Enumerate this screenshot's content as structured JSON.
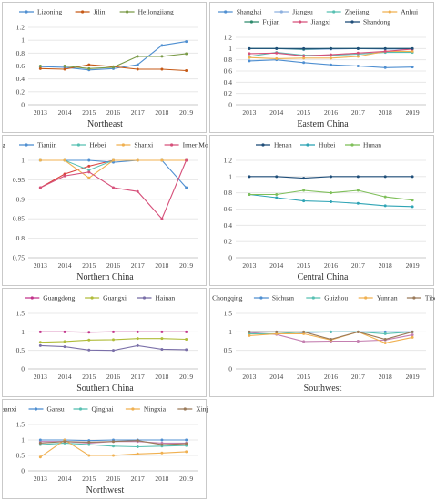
{
  "chart_data": [
    {
      "title": "Northeast",
      "type": "line",
      "x": [
        "2013",
        "2014",
        "2015",
        "2016",
        "2017",
        "2018",
        "2019"
      ],
      "ylim": [
        0,
        1.2
      ],
      "yticks": [
        "0",
        "0.2",
        "0.4",
        "0.6",
        "0.8",
        "1",
        "1.2"
      ],
      "series": [
        {
          "name": "Liaoning",
          "color": "#4f8fd1",
          "values": [
            0.59,
            0.58,
            0.54,
            0.56,
            0.62,
            0.92,
            0.98
          ]
        },
        {
          "name": "Jilin",
          "color": "#c65a17",
          "values": [
            0.56,
            0.55,
            0.62,
            0.59,
            0.55,
            0.55,
            0.53
          ]
        },
        {
          "name": "Heilongjiang",
          "color": "#7a9a47",
          "values": [
            0.6,
            0.6,
            0.56,
            0.58,
            0.75,
            0.75,
            0.79
          ]
        }
      ]
    },
    {
      "title": "Eastern China",
      "type": "line",
      "x": [
        "2013",
        "2014",
        "2015",
        "2016",
        "2017",
        "2018",
        "2019"
      ],
      "ylim": [
        0,
        1.2
      ],
      "yticks": [
        "0",
        "0.2",
        "0.4",
        "0.6",
        "0.8",
        "1",
        "1.2"
      ],
      "series": [
        {
          "name": "Shanghai",
          "color": "#4f8fd1",
          "values": [
            0.78,
            0.8,
            0.75,
            0.71,
            0.69,
            0.66,
            0.67
          ]
        },
        {
          "name": "Jiangsu",
          "color": "#8db0df",
          "values": [
            1.0,
            1.0,
            0.98,
            0.99,
            1.0,
            0.99,
            0.99
          ]
        },
        {
          "name": "Zhejiang",
          "color": "#58c0b2",
          "values": [
            0.86,
            0.93,
            0.88,
            0.88,
            0.9,
            0.93,
            0.93
          ]
        },
        {
          "name": "Anhui",
          "color": "#f0b050",
          "values": [
            0.84,
            0.82,
            0.83,
            0.83,
            0.86,
            0.95,
            0.95
          ]
        },
        {
          "name": "Fujian",
          "color": "#2d8a6c",
          "values": [
            1.0,
            1.0,
            0.99,
            1.0,
            1.0,
            1.0,
            1.0
          ]
        },
        {
          "name": "Jiangxi",
          "color": "#d6507a",
          "values": [
            0.91,
            0.92,
            0.87,
            0.89,
            0.92,
            0.95,
            0.99
          ]
        },
        {
          "name": "Shandong",
          "color": "#1f4e79",
          "values": [
            1.0,
            1.0,
            1.0,
            1.0,
            1.0,
            1.0,
            1.0
          ]
        }
      ]
    },
    {
      "title": "Northern China",
      "type": "line",
      "x": [
        "2013",
        "2014",
        "2015",
        "2016",
        "2017",
        "2018",
        "2019"
      ],
      "ylim": [
        0.75,
        1
      ],
      "yticks": [
        "0.75",
        "0.8",
        "0.85",
        "0.9",
        "0.95",
        "1"
      ],
      "series": [
        {
          "name": "Beijing",
          "color": "#d9413c",
          "values": [
            0.93,
            0.965,
            0.985,
            1.0,
            1.0,
            1.0,
            1.0
          ]
        },
        {
          "name": "Tianjin",
          "color": "#4f8fd1",
          "values": [
            1.0,
            1.0,
            1.0,
            0.995,
            1.0,
            1.0,
            0.93
          ]
        },
        {
          "name": "Hebei",
          "color": "#58c0b2",
          "values": [
            1.0,
            1.0,
            0.975,
            1.0,
            1.0,
            1.0,
            1.0
          ]
        },
        {
          "name": "Shanxi",
          "color": "#f0b050",
          "values": [
            1.0,
            1.0,
            0.955,
            1.0,
            1.0,
            1.0,
            1.0
          ]
        },
        {
          "name": "Inner Mongolia",
          "color": "#d6507a",
          "values": [
            0.93,
            0.96,
            0.97,
            0.93,
            0.92,
            0.85,
            1.0
          ]
        }
      ]
    },
    {
      "title": "Central China",
      "type": "line",
      "x": [
        "2013",
        "2014",
        "2015",
        "2016",
        "2017",
        "2018",
        "2019"
      ],
      "ylim": [
        0,
        1.2
      ],
      "yticks": [
        "0",
        "0.2",
        "0.4",
        "0.6",
        "0.8",
        "1",
        "1.2"
      ],
      "series": [
        {
          "name": "Henan",
          "color": "#1f4e79",
          "values": [
            1.0,
            1.0,
            0.98,
            1.0,
            1.0,
            1.0,
            1.0
          ]
        },
        {
          "name": "Hubei",
          "color": "#2fa4b5",
          "values": [
            0.78,
            0.74,
            0.7,
            0.69,
            0.67,
            0.64,
            0.63
          ]
        },
        {
          "name": "Hunan",
          "color": "#7fbf5a",
          "values": [
            0.78,
            0.78,
            0.83,
            0.8,
            0.83,
            0.75,
            0.71
          ]
        }
      ]
    },
    {
      "title": "Southern China",
      "type": "line",
      "x": [
        "2013",
        "2014",
        "2015",
        "2016",
        "2017",
        "2018",
        "2019"
      ],
      "ylim": [
        0,
        1.5
      ],
      "yticks": [
        "0",
        "0.5",
        "1",
        "1.5"
      ],
      "series": [
        {
          "name": "Guangdong",
          "color": "#c2338a",
          "values": [
            1.0,
            1.0,
            0.99,
            1.0,
            1.0,
            1.0,
            1.0
          ]
        },
        {
          "name": "Guangxi",
          "color": "#b0bc3a",
          "values": [
            0.72,
            0.74,
            0.78,
            0.79,
            0.82,
            0.82,
            0.8
          ]
        },
        {
          "name": "Hainan",
          "color": "#7a6fa8",
          "values": [
            0.63,
            0.6,
            0.51,
            0.5,
            0.63,
            0.53,
            0.52
          ]
        }
      ]
    },
    {
      "title": "Southwest",
      "type": "line",
      "x": [
        "2013",
        "2014",
        "2015",
        "2016",
        "2017",
        "2018",
        "2019"
      ],
      "ylim": [
        0,
        1.5
      ],
      "yticks": [
        "0",
        "0.5",
        "1",
        "1.5"
      ],
      "series": [
        {
          "name": "Chongqing",
          "color": "#c47fb0",
          "values": [
            0.98,
            0.93,
            0.74,
            0.75,
            0.75,
            0.78,
            0.92
          ]
        },
        {
          "name": "Sichuan",
          "color": "#4f8fd1",
          "values": [
            1.0,
            1.0,
            0.98,
            1.0,
            1.0,
            1.0,
            1.0
          ]
        },
        {
          "name": "Guizhou",
          "color": "#58c0b2",
          "values": [
            0.95,
            0.95,
            1.0,
            1.0,
            1.0,
            0.95,
            1.0
          ]
        },
        {
          "name": "Yunnan",
          "color": "#f0b050",
          "values": [
            0.9,
            0.95,
            0.95,
            0.78,
            1.0,
            0.7,
            0.85
          ]
        },
        {
          "name": "Tibet",
          "color": "#9a7a5a",
          "values": [
            1.0,
            1.0,
            1.0,
            0.8,
            1.0,
            0.8,
            1.0
          ]
        }
      ]
    },
    {
      "title": "Northwest",
      "type": "line",
      "x": [
        "2013",
        "2014",
        "2015",
        "2016",
        "2017",
        "2018",
        "2019"
      ],
      "ylim": [
        0,
        1.5
      ],
      "yticks": [
        "0",
        "0.5",
        "1",
        "1.5"
      ],
      "series": [
        {
          "name": "Shaanxi",
          "color": "#c47fb0",
          "values": [
            0.95,
            0.95,
            0.9,
            0.95,
            0.95,
            0.9,
            0.9
          ]
        },
        {
          "name": "Gansu",
          "color": "#4f8fd1",
          "values": [
            1.0,
            1.0,
            0.98,
            1.0,
            1.0,
            1.0,
            1.0
          ]
        },
        {
          "name": "Qinghai",
          "color": "#58c0b2",
          "values": [
            0.85,
            0.9,
            0.85,
            0.8,
            0.78,
            0.8,
            0.82
          ]
        },
        {
          "name": "Ningxia",
          "color": "#f0b050",
          "values": [
            0.45,
            1.0,
            0.5,
            0.5,
            0.55,
            0.58,
            0.62
          ]
        },
        {
          "name": "Xinjiang",
          "color": "#9a7a5a",
          "values": [
            0.9,
            0.95,
            0.93,
            0.95,
            0.98,
            0.85,
            0.88
          ]
        }
      ]
    }
  ]
}
